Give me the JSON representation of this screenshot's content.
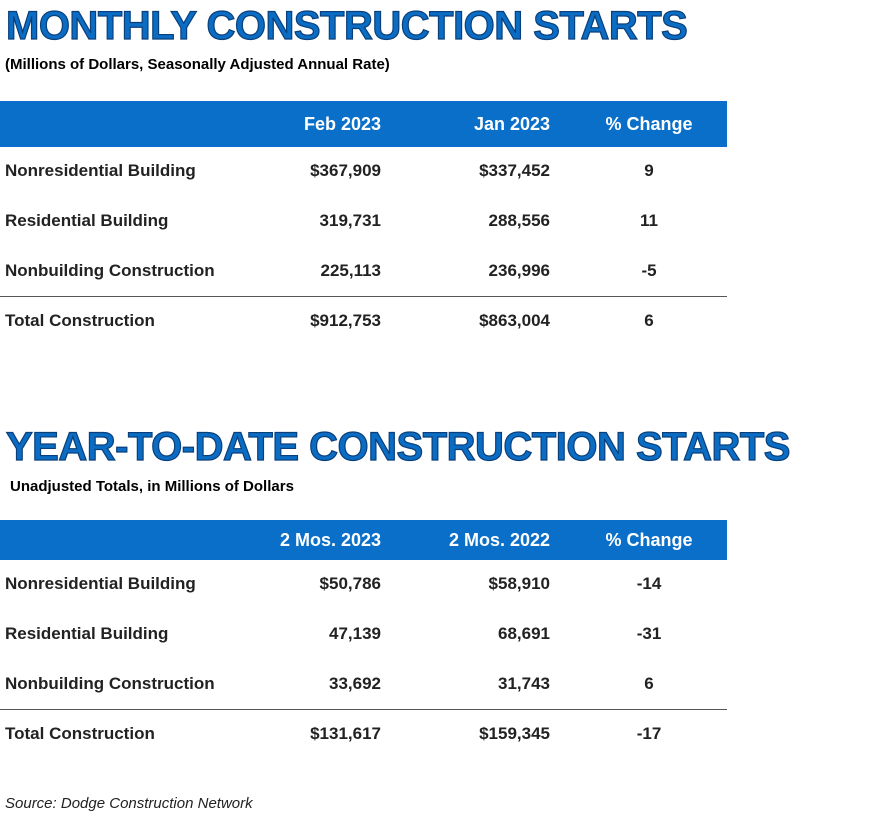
{
  "monthly": {
    "title": "MONTHLY CONSTRUCTION STARTS",
    "subtitle": "(Millions of Dollars, Seasonally Adjusted Annual Rate)",
    "headers": [
      "Feb 2023",
      "Jan 2023",
      "% Change"
    ],
    "rows": [
      {
        "label": "Nonresidential Building",
        "v1": "$367,909",
        "v2": "$337,452",
        "pct": "9"
      },
      {
        "label": "Residential Building",
        "v1": "319,731",
        "v2": "288,556",
        "pct": "11"
      },
      {
        "label": "Nonbuilding Construction",
        "v1": "225,113",
        "v2": "236,996",
        "pct": "-5"
      }
    ],
    "total": {
      "label": "Total Construction",
      "v1": "$912,753",
      "v2": "$863,004",
      "pct": "6"
    }
  },
  "ytd": {
    "title": "YEAR-TO-DATE CONSTRUCTION STARTS",
    "subtitle": "Unadjusted Totals, in Millions of Dollars",
    "headers": [
      "2 Mos. 2023",
      "2 Mos. 2022",
      "% Change"
    ],
    "rows": [
      {
        "label": "Nonresidential Building",
        "v1": "$50,786",
        "v2": "$58,910",
        "pct": "-14"
      },
      {
        "label": "Residential Building",
        "v1": "47,139",
        "v2": "68,691",
        "pct": "-31"
      },
      {
        "label": "Nonbuilding Construction",
        "v1": "33,692",
        "v2": "31,743",
        "pct": "6"
      }
    ],
    "total": {
      "label": "Total Construction",
      "v1": "$131,617",
      "v2": "$159,345",
      "pct": "-17"
    }
  },
  "source": "Source: Dodge Construction Network",
  "colors": {
    "title": "#0b6cc4",
    "header_bg": "#0a6fc8"
  }
}
